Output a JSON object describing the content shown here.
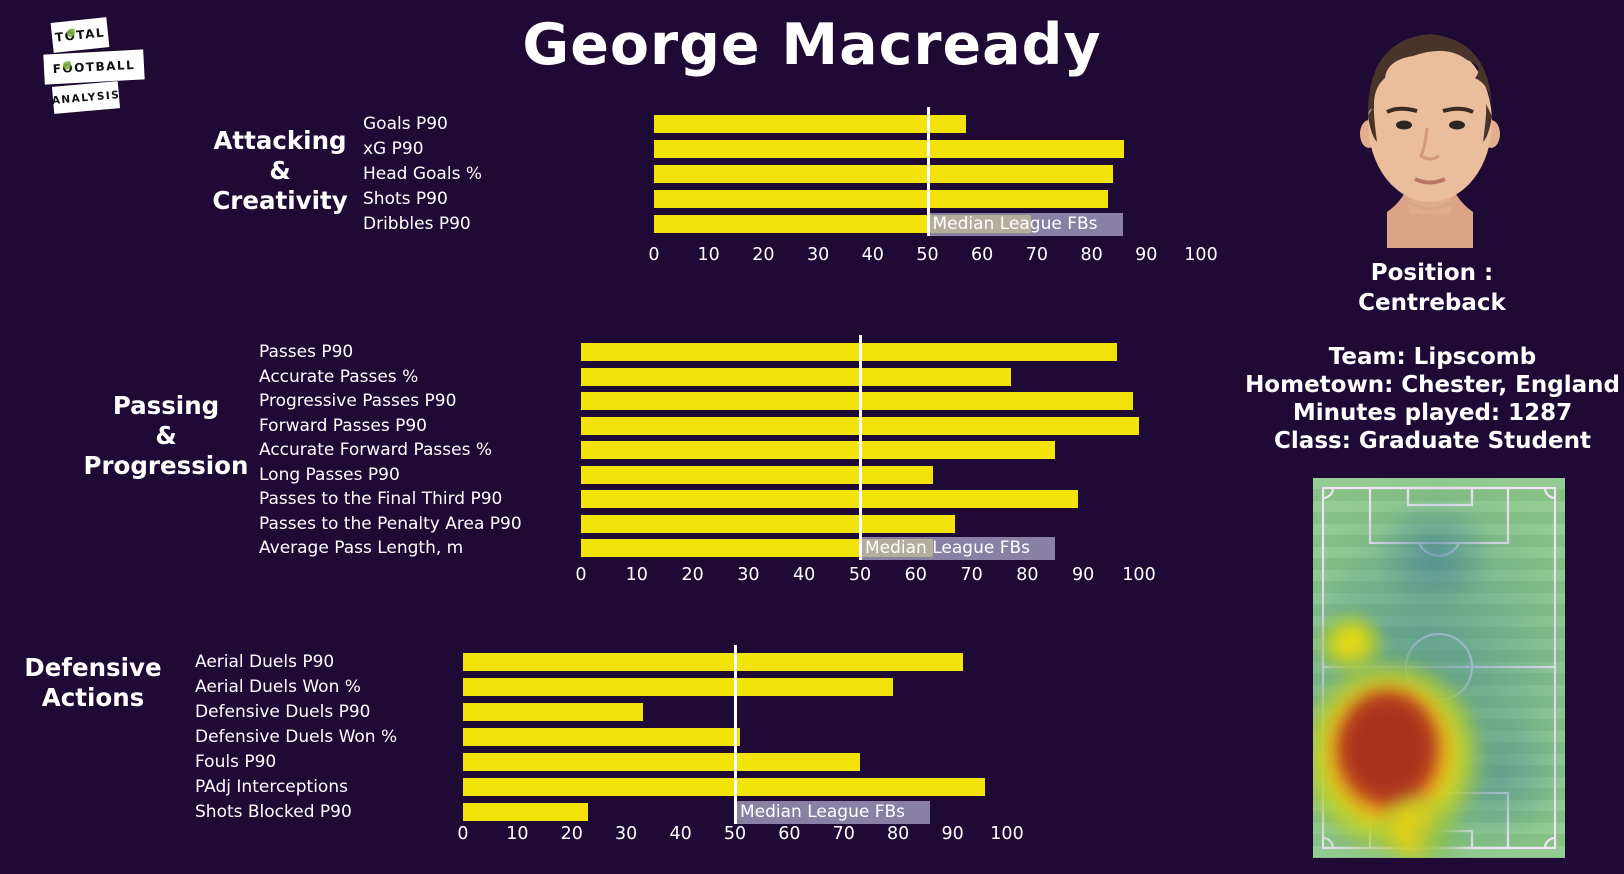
{
  "title": "George Macready",
  "logo": {
    "lines": [
      "Total",
      "Football",
      "Analysis"
    ]
  },
  "player": {
    "position_label": "Position :",
    "position": "Centreback",
    "team": "Team: Lipscomb",
    "hometown": "Hometown: Chester, England",
    "minutes": "Minutes played: 1287",
    "class": "Class: Graduate Student"
  },
  "median_label": "Median League FBs",
  "colors": {
    "background": "#1e0a35",
    "bar": "#f2e40b",
    "median_line": "#ffffff",
    "median_label_bg": "rgba(163,159,192,0.8)",
    "text": "#ffffff",
    "pitch_green": "#8dc98c",
    "heat_core": "#b23a1e"
  },
  "chart_data": [
    {
      "type": "bar",
      "orientation": "horizontal",
      "title": "Attacking & Creativity",
      "title_lines": [
        "Attacking",
        "&",
        "Creativity"
      ],
      "categories": [
        "Goals P90",
        "xG P90",
        "Head Goals %",
        "Shots P90",
        "Dribbles P90"
      ],
      "values": [
        57,
        86,
        84,
        83,
        69
      ],
      "xlim": [
        0,
        100
      ],
      "xticks": [
        0,
        10,
        20,
        30,
        40,
        50,
        60,
        70,
        80,
        90,
        100
      ],
      "median": 50,
      "median_label": "Median League FBs",
      "grid": false,
      "unit": "percentile"
    },
    {
      "type": "bar",
      "orientation": "horizontal",
      "title": "Passing & Progression",
      "title_lines": [
        "Passing",
        "&",
        "Progression"
      ],
      "categories": [
        "Passes P90",
        "Accurate Passes %",
        "Progressive Passes P90",
        "Forward Passes P90",
        "Accurate Forward Passes %",
        "Long Passes P90",
        "Passes to the Final Third P90",
        "Passes to the Penalty Area P90",
        "Average Pass Length, m"
      ],
      "values": [
        96,
        77,
        99,
        100,
        85,
        63,
        89,
        67,
        63
      ],
      "xlim": [
        0,
        100
      ],
      "xticks": [
        0,
        10,
        20,
        30,
        40,
        50,
        60,
        70,
        80,
        90,
        100
      ],
      "median": 50,
      "median_label": "Median League FBs",
      "grid": false,
      "unit": "percentile"
    },
    {
      "type": "bar",
      "orientation": "horizontal",
      "title": "Defensive Actions",
      "title_lines": [
        "Defensive",
        "Actions"
      ],
      "categories": [
        "Aerial Duels P90",
        "Aerial Duels Won %",
        "Defensive Duels P90",
        "Defensive Duels Won %",
        "Fouls P90",
        "PAdj Interceptions",
        "Shots Blocked P90"
      ],
      "values": [
        92,
        79,
        33,
        51,
        73,
        96,
        23
      ],
      "xlim": [
        0,
        100
      ],
      "xticks": [
        0,
        10,
        20,
        30,
        40,
        50,
        60,
        70,
        80,
        90,
        100
      ],
      "median": 50,
      "median_label": "Median League FBs",
      "grid": false,
      "unit": "percentile"
    }
  ]
}
